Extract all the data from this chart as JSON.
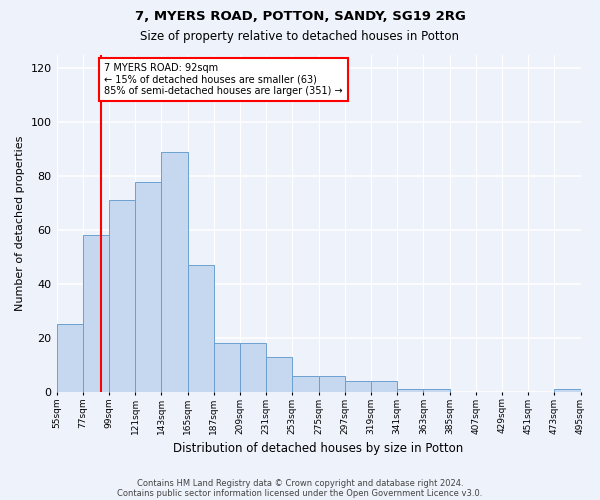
{
  "title1": "7, MYERS ROAD, POTTON, SANDY, SG19 2RG",
  "title2": "Size of property relative to detached houses in Potton",
  "xlabel": "Distribution of detached houses by size in Potton",
  "ylabel": "Number of detached properties",
  "bar_color": "#c5d8f0",
  "bar_edge_color": "#6aa0d0",
  "bar_starts": [
    55,
    77,
    99,
    121,
    143,
    165,
    187,
    209,
    231,
    253,
    275,
    297,
    319,
    341,
    363,
    385,
    407,
    429,
    451,
    473
  ],
  "bar_heights": [
    25,
    58,
    71,
    78,
    89,
    47,
    18,
    18,
    13,
    6,
    6,
    4,
    4,
    1,
    1,
    0,
    0,
    0,
    0,
    1
  ],
  "bin_width": 22,
  "ylim": [
    0,
    125
  ],
  "yticks": [
    0,
    20,
    40,
    60,
    80,
    100,
    120
  ],
  "property_line_x": 92,
  "annotation_text": "7 MYERS ROAD: 92sqm\n← 15% of detached houses are smaller (63)\n85% of semi-detached houses are larger (351) →",
  "footer1": "Contains HM Land Registry data © Crown copyright and database right 2024.",
  "footer2": "Contains public sector information licensed under the Open Government Licence v3.0.",
  "background_color": "#eef2fa",
  "tick_labels": [
    "55sqm",
    "77sqm",
    "99sqm",
    "121sqm",
    "143sqm",
    "165sqm",
    "187sqm",
    "209sqm",
    "231sqm",
    "253sqm",
    "275sqm",
    "297sqm",
    "319sqm",
    "341sqm",
    "363sqm",
    "385sqm",
    "407sqm",
    "429sqm",
    "451sqm",
    "473sqm",
    "495sqm"
  ]
}
